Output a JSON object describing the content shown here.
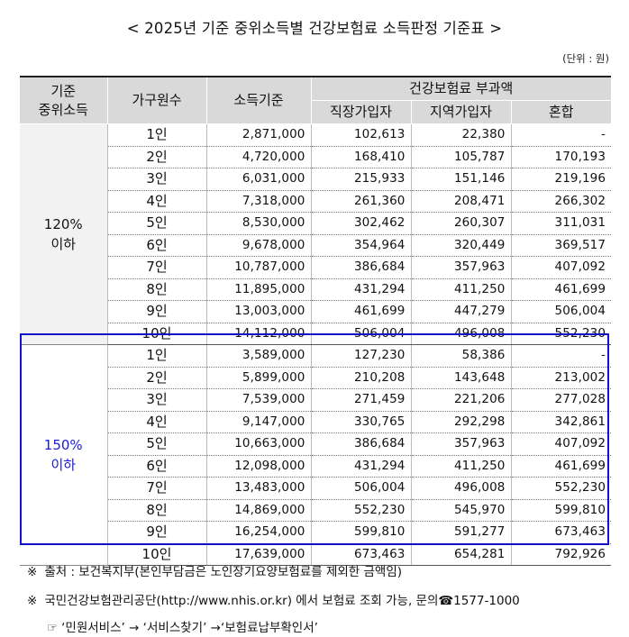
{
  "title": "< 2025년 기준 중위소득별 건강보험료 소득판정 기준표 >",
  "unit": "(단위 : 원)",
  "headers": {
    "standard": "기준\n중위소득",
    "household": "가구원수",
    "income": "소득기준",
    "premium": "건강보험료 부과액",
    "employee": "직장가입자",
    "regional": "지역가입자",
    "mixed": "혼합"
  },
  "groups": [
    {
      "label": "120%\n이하",
      "rows": [
        {
          "household": "1인",
          "income": "2,871,000",
          "employee": "102,613",
          "regional": "22,380",
          "mixed": "-"
        },
        {
          "household": "2인",
          "income": "4,720,000",
          "employee": "168,410",
          "regional": "105,787",
          "mixed": "170,193"
        },
        {
          "household": "3인",
          "income": "6,031,000",
          "employee": "215,933",
          "regional": "151,146",
          "mixed": "219,196"
        },
        {
          "household": "4인",
          "income": "7,318,000",
          "employee": "261,360",
          "regional": "208,471",
          "mixed": "266,302"
        },
        {
          "household": "5인",
          "income": "8,530,000",
          "employee": "302,462",
          "regional": "260,307",
          "mixed": "311,031"
        },
        {
          "household": "6인",
          "income": "9,678,000",
          "employee": "354,964",
          "regional": "320,449",
          "mixed": "369,517"
        },
        {
          "household": "7인",
          "income": "10,787,000",
          "employee": "386,684",
          "regional": "357,963",
          "mixed": "407,092"
        },
        {
          "household": "8인",
          "income": "11,895,000",
          "employee": "431,294",
          "regional": "411,250",
          "mixed": "461,699"
        },
        {
          "household": "9인",
          "income": "13,003,000",
          "employee": "461,699",
          "regional": "447,279",
          "mixed": "506,004"
        },
        {
          "household": "10인",
          "income": "14,112,000",
          "employee": "506,004",
          "regional": "496,008",
          "mixed": "552,230"
        }
      ]
    },
    {
      "label": "150%\n이하",
      "rows": [
        {
          "household": "1인",
          "income": "3,589,000",
          "employee": "127,230",
          "regional": "58,386",
          "mixed": "-"
        },
        {
          "household": "2인",
          "income": "5,899,000",
          "employee": "210,208",
          "regional": "143,648",
          "mixed": "213,002"
        },
        {
          "household": "3인",
          "income": "7,539,000",
          "employee": "271,459",
          "regional": "221,206",
          "mixed": "277,028"
        },
        {
          "household": "4인",
          "income": "9,147,000",
          "employee": "330,765",
          "regional": "292,298",
          "mixed": "342,861"
        },
        {
          "household": "5인",
          "income": "10,663,000",
          "employee": "386,684",
          "regional": "357,963",
          "mixed": "407,092"
        },
        {
          "household": "6인",
          "income": "12,098,000",
          "employee": "431,294",
          "regional": "411,250",
          "mixed": "461,699"
        },
        {
          "household": "7인",
          "income": "13,483,000",
          "employee": "506,004",
          "regional": "496,008",
          "mixed": "552,230"
        },
        {
          "household": "8인",
          "income": "14,869,000",
          "employee": "552,230",
          "regional": "545,970",
          "mixed": "599,810"
        },
        {
          "household": "9인",
          "income": "16,254,000",
          "employee": "599,810",
          "regional": "591,277",
          "mixed": "673,463"
        },
        {
          "household": "10인",
          "income": "17,639,000",
          "employee": "673,463",
          "regional": "654,281",
          "mixed": "792,926"
        }
      ]
    }
  ],
  "notes": {
    "source_mark": "※",
    "source": "출처 : 보건복지부(본인부담금은 노인장기요양보험료를 제외한 금액임)",
    "contact_mark": "※",
    "contact": "국민건강보험관리공단(http://www.nhis.or.kr) 에서 보험료 조회 가능, 문의☎1577-1000",
    "path_mark": "☞",
    "path": "‘민원서비스’ → ‘서비스찾기’ →‘보험료납부확인서’"
  },
  "colors": {
    "header_bg": "#d9d9d9",
    "highlight_border": "#1010cc",
    "highlight_text": "#1a1adb"
  }
}
